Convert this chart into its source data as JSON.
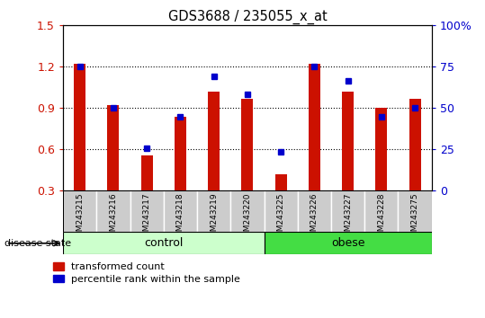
{
  "title": "GDS3688 / 235055_x_at",
  "samples": [
    "GSM243215",
    "GSM243216",
    "GSM243217",
    "GSM243218",
    "GSM243219",
    "GSM243220",
    "GSM243225",
    "GSM243226",
    "GSM243227",
    "GSM243228",
    "GSM243275"
  ],
  "red_values": [
    1.22,
    0.92,
    0.56,
    0.84,
    1.02,
    0.97,
    0.42,
    1.22,
    1.02,
    0.9,
    0.97
  ],
  "blue_values": [
    1.2,
    0.9,
    0.61,
    0.84,
    1.13,
    1.0,
    0.58,
    1.2,
    1.1,
    0.84,
    0.9
  ],
  "ylim_left": [
    0.3,
    1.5
  ],
  "ylim_right": [
    0,
    100
  ],
  "left_ticks": [
    0.3,
    0.6,
    0.9,
    1.2,
    1.5
  ],
  "right_ticks": [
    0,
    25,
    50,
    75,
    100
  ],
  "right_tick_labels": [
    "0",
    "25",
    "50",
    "75",
    "100%"
  ],
  "bar_color": "#cc1100",
  "dot_color": "#0000cc",
  "control_label": "control",
  "obese_label": "obese",
  "disease_label": "disease state",
  "control_indices": [
    0,
    1,
    2,
    3,
    4,
    5
  ],
  "obese_indices": [
    6,
    7,
    8,
    9,
    10
  ],
  "legend_red": "transformed count",
  "legend_blue": "percentile rank within the sample",
  "bar_bottom": 0.3,
  "bar_width": 0.35
}
